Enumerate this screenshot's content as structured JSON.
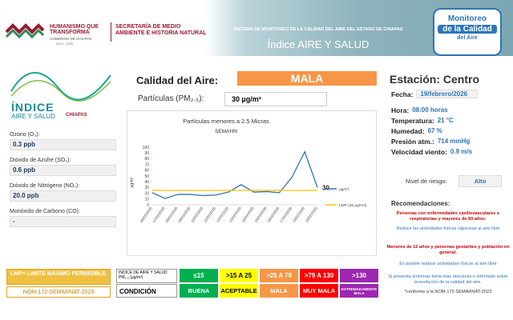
{
  "header": {
    "brand": "HUMANISMO QUE TRANSFORMA",
    "government": "GOBIERNO DE CHIAPAS",
    "period": "2024 - 2030",
    "secretariat": "SECRETARÍA DE MEDIO AMBIENTE E HISTORIA NATURAL",
    "system": "SISTEMA DE MONITOREO DE LA CALIDAD DEL AIRE DEL ESTADO DE CHIAPAS",
    "index_title": "Índice AIRE Y SALUD",
    "logo": [
      "Monitoreo",
      "de la Calidad",
      "del Aire"
    ]
  },
  "left": {
    "logo": [
      "ÍNDICE",
      "AIRE Y SALUD",
      "CHIAPAS"
    ],
    "pollutants": [
      {
        "label": "Ozono (O₃):",
        "value": "0.3 ppb"
      },
      {
        "label": "Dióxido de Azufre (SO₂):",
        "value": "0.6 ppb"
      },
      {
        "label": "Dióxido de Nitrógeno (NO₂):",
        "value": "20.0 ppb"
      },
      {
        "label": "Monóxido de Carbono (CO):",
        "value": "-"
      }
    ]
  },
  "quality": {
    "label": "Calidad del Aire:",
    "value": "MALA",
    "pm_label": "Partículas (PM₂.₅):",
    "pm_value": "30 µg/m³"
  },
  "chart_data": {
    "type": "line",
    "title": "Partículas menores a 2.5 Micras",
    "subtitle": "SEMAHN",
    "y_label": "µg/m³",
    "categories": [
      "06/02/2026",
      "07/02/2026",
      "08/02/2026",
      "09/02/2026",
      "10/02/2026",
      "11/02/2026",
      "12/02/2026",
      "13/02/2026",
      "14/02/2026",
      "15/02/2026",
      "16/02/2026",
      "17/02/2026",
      "18/02/2026",
      "19/02/2026"
    ],
    "series": [
      {
        "name": "µg/m³",
        "color": "#2e75b6",
        "values": [
          21,
          11,
          18,
          18,
          16,
          17,
          22,
          35,
          22,
          23,
          21,
          48,
          92,
          30
        ]
      },
      {
        "name": "LMP (25 µg/m3)",
        "color": "#ffc000",
        "values": [
          25,
          25,
          25,
          25,
          25,
          25,
          25,
          25,
          25,
          25,
          25,
          25,
          25,
          25
        ]
      }
    ],
    "ylim": [
      0,
      100
    ],
    "yticks": [
      0,
      10,
      20,
      30,
      40,
      50,
      60,
      70,
      80,
      90,
      100
    ],
    "grid": false,
    "legend": "right"
  },
  "station": {
    "label": "Estación: Centro",
    "fields": [
      {
        "label": "Fecha:",
        "value": "19/febrero/2026"
      },
      {
        "label": "Hora:",
        "value": "08:00 horas"
      },
      {
        "label": "Temperatura:",
        "value": "21 °C"
      },
      {
        "label": "Humedad:",
        "value": "67 %"
      },
      {
        "label": "Presión atm.:",
        "value": "714 mmHg"
      },
      {
        "label": "Velocidad viento:",
        "value": "0.9 m/s"
      }
    ],
    "risk": {
      "label": "Nivel de riesgo:",
      "value": "Alto"
    }
  },
  "recommendations": {
    "title": "Recomendaciones:",
    "group1": "Personas con enfermedades cardiovasculares o respiratorias y mayores de 60 años:",
    "item1": "Reduce las actividades físicas vigorosas al aire libre",
    "group2": "Menores de 12 años y personas gestantes y población en general:",
    "item2": "Es posible realizar actividades físicas al aire libre",
    "note": "Si presenta síntomas toma más descanso e infórmate sobre la evolución de la calidad del aire.",
    "footnote": "*conforme a la NOM-172-SEMARNAT-2023"
  },
  "legend_table": {
    "lmp": "LMP= LIMITE MÁXIMO PERMISIBLE",
    "norm": "NOM-172-SEMARNAT-2023",
    "header": "INDICE DE AIRE Y SALUD PM₂.₅ (µg/m³)",
    "condition_label": "CONDICIÓN",
    "levels": [
      {
        "range": "≤15",
        "condition": "BUENA",
        "color": "#00b050"
      },
      {
        "range": ">15 A 25",
        "condition": "ACEPTABLE",
        "color": "#ffff00"
      },
      {
        "range": ">25 A 79",
        "condition": "MALA",
        "color": "#f79646"
      },
      {
        "range": ">79 A 130",
        "condition": "MUY MALA",
        "color": "#ff0000"
      },
      {
        "range": ">130",
        "condition": "EXTREMADAMENTE MALA",
        "color": "#9c27b0"
      }
    ]
  }
}
